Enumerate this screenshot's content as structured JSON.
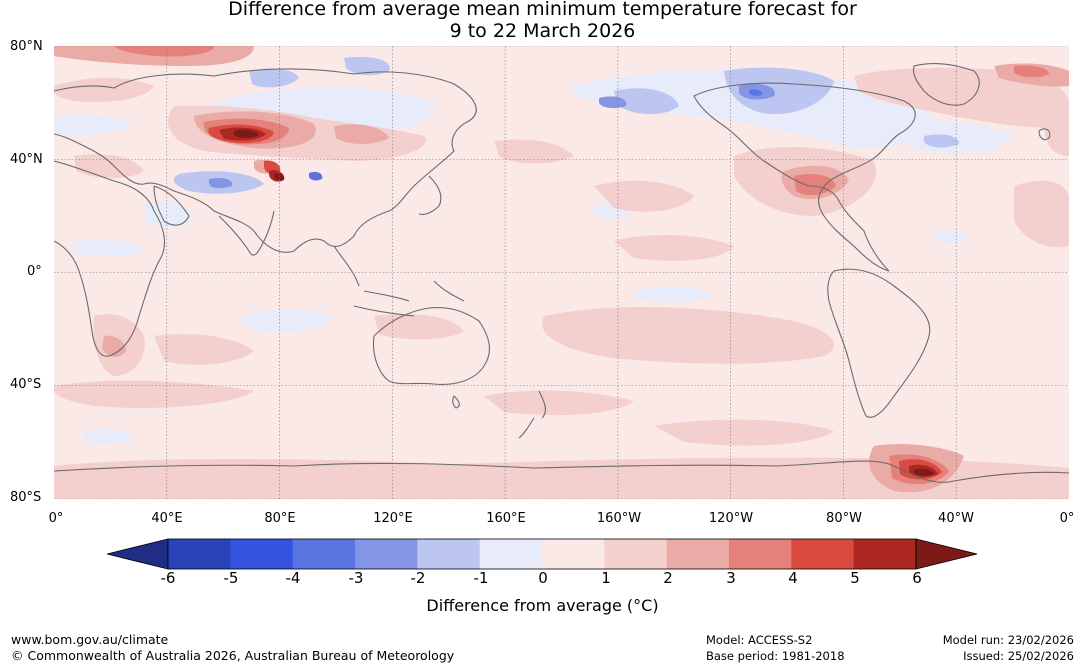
{
  "title_line1": "Difference from average mean minimum temperature forecast for",
  "title_line2": "9 to 22 March 2026",
  "lat_labels": [
    "80°N",
    "40°N",
    "0°",
    "40°S",
    "80°S"
  ],
  "lon_labels": [
    "0°",
    "40°E",
    "80°E",
    "120°E",
    "160°E",
    "160°W",
    "120°W",
    "80°W",
    "40°W",
    "0°"
  ],
  "colorbar": {
    "label": "Difference from average (°C)",
    "ticks": [
      "-6",
      "-5",
      "-4",
      "-3",
      "-2",
      "-1",
      "0",
      "1",
      "2",
      "3",
      "4",
      "5",
      "6"
    ],
    "colors": [
      "#1f2d84",
      "#2b43b8",
      "#3454e0",
      "#5a74e0",
      "#8595e6",
      "#bcc6f1",
      "#e8ecfa",
      "#fbe9e8",
      "#f3cfcd",
      "#eaaba7",
      "#e5817a",
      "#d94a40",
      "#ad2722",
      "#7b1a16"
    ]
  },
  "footer": {
    "website": "www.bom.gov.au/climate",
    "copyright": "© Commonwealth of Australia 2026, Australian Bureau of Meteorology",
    "model": "Model: ACCESS-S2",
    "base_period": "Base period: 1981-2018",
    "model_run": "Model run: 23/02/2026",
    "issued": "Issued: 25/02/2026"
  }
}
